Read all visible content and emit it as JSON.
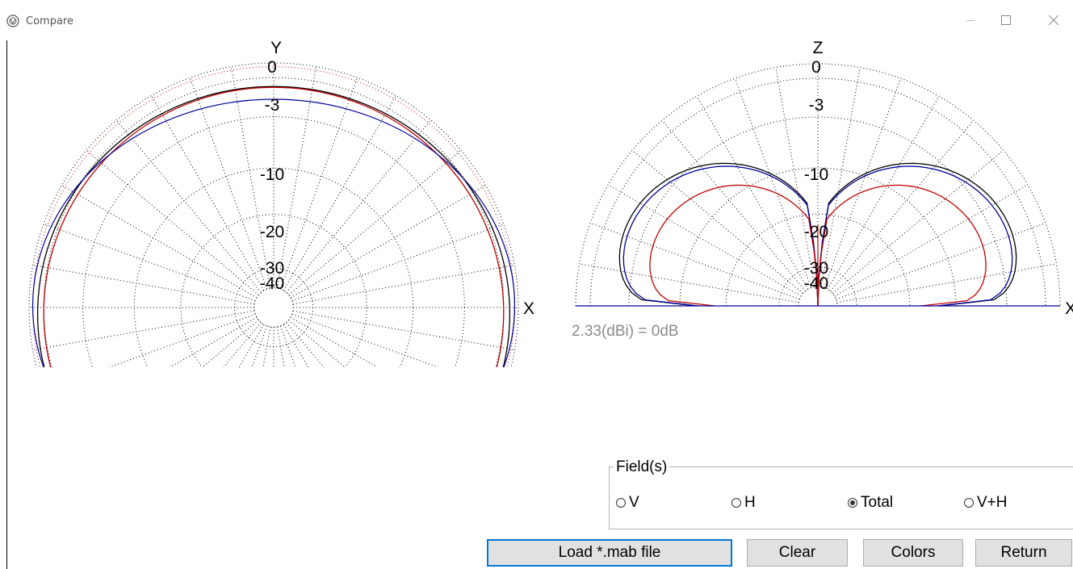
{
  "window": {
    "title": "Compare"
  },
  "plot_left": {
    "axis_top": "Y",
    "axis_right": "X",
    "ring_labels": [
      "0",
      "-3",
      "-10",
      "-20",
      "-30",
      "-40"
    ]
  },
  "plot_right": {
    "axis_top": "Z",
    "axis_right": "X",
    "ring_labels": [
      "0",
      "-3",
      "-10",
      "-20",
      "-30",
      "-40"
    ]
  },
  "gain_reference": "2.33(dBi) = 0dB",
  "fields": {
    "legend": "Field(s)",
    "options": [
      {
        "label": "V",
        "selected": false
      },
      {
        "label": "H",
        "selected": false
      },
      {
        "label": "Total",
        "selected": true
      },
      {
        "label": "V+H",
        "selected": false
      }
    ]
  },
  "buttons": {
    "load": "Load *.mab file",
    "clear": "Clear",
    "colors": "Colors",
    "return": "Return"
  },
  "colors": {
    "trace_black": "#000000",
    "trace_red": "#c00000",
    "trace_blue": "#0000a0",
    "default_button_border": "#0078d7"
  }
}
